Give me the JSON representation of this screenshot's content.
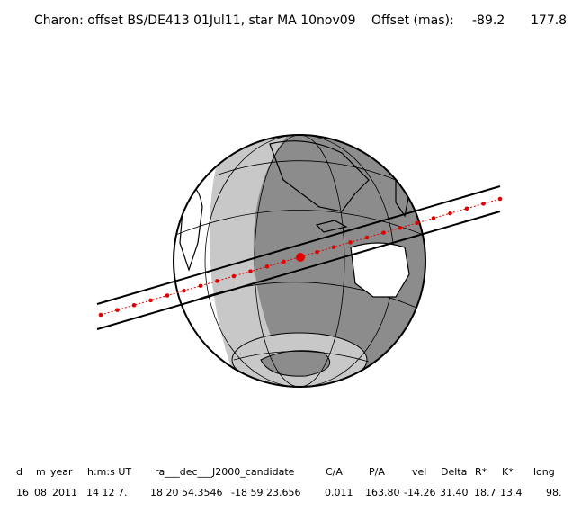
{
  "header": {
    "title": "Charon: offset BS/DE413 01Jul11, star MA 10nov09",
    "offset_label": "Offset (mas):",
    "offset_values": [
      "-89.2",
      "177.8"
    ]
  },
  "table": {
    "columns": [
      "d",
      "m",
      "year",
      "h:m:s UT",
      "ra___dec___J2000_candidate",
      "C/A",
      "P/A",
      "vel",
      "Delta",
      "R*",
      "K*",
      "long"
    ],
    "rows": [
      [
        "16",
        "08",
        "2011",
        "14 12 7.",
        "18 20 54.3546",
        "-18 59 23.656",
        "0.011",
        "163.80",
        "-14.26",
        "31.40",
        "18.7",
        "13.4",
        "98."
      ]
    ]
  }
}
